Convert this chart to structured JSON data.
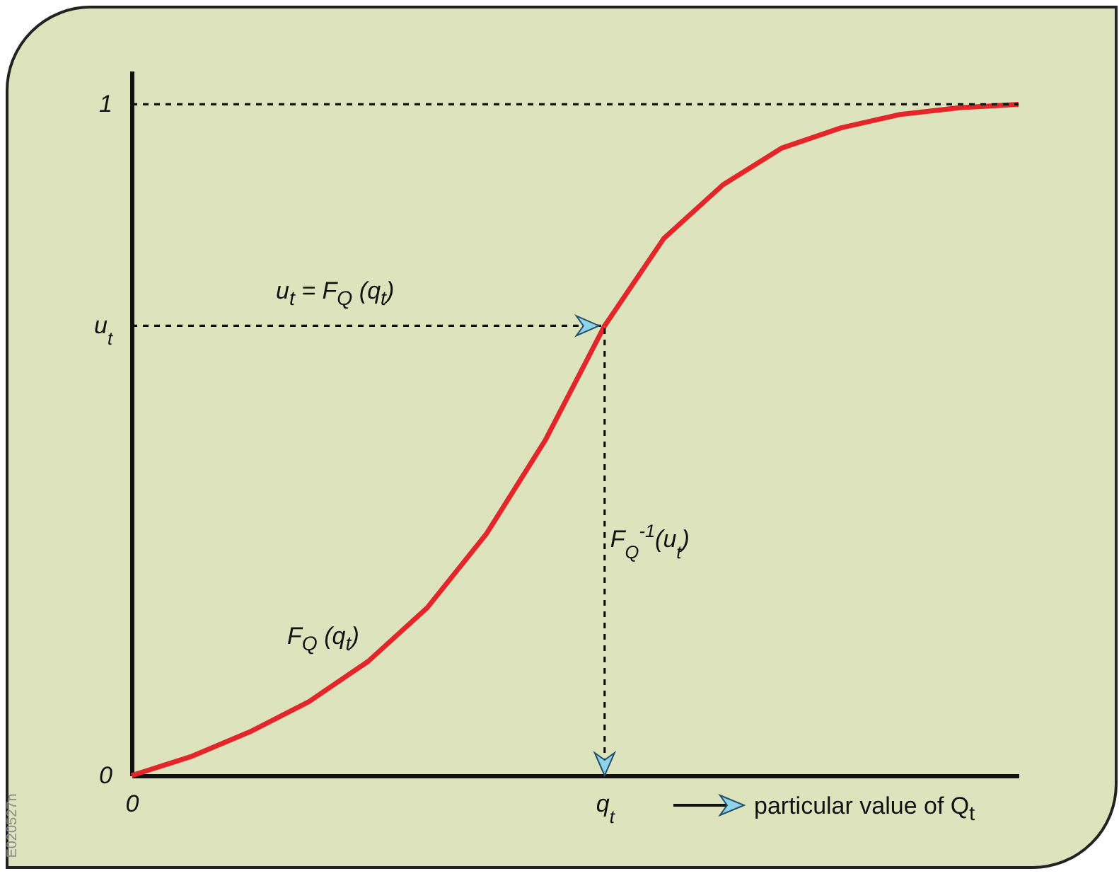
{
  "chart_data": {
    "type": "line",
    "categories": [
      "0",
      null,
      null,
      null,
      null,
      null,
      null,
      null,
      "q$_{t}$",
      null,
      null,
      null,
      null,
      null,
      null,
      null
    ],
    "series": [
      {
        "color": "#e3262a",
        "values": [
          0,
          0.028,
          0.065,
          0.11,
          0.17,
          0.25,
          0.36,
          0.5,
          0.67,
          0.8,
          0.88,
          0.935,
          0.965,
          0.985,
          0.995,
          1
        ]
      }
    ],
    "ylim": [
      0,
      1.05
    ],
    "yticks": [
      0,
      {
        "value": 0.67,
        "label": "u$_{t}$"
      },
      1
    ],
    "ref_lines": [
      {
        "axis": "y",
        "value": 1,
        "line_style": "dashed"
      },
      {
        "axis": "y",
        "value": 0.67,
        "line_style": "dashed"
      },
      {
        "axis": "x",
        "value": "q$_{t}$",
        "line_style": "dashed"
      }
    ],
    "annotations": [
      "u$_{t}$ = F$_{Q}$ (q$_{t}$)",
      {
        "text": "F$_{Q}$$^{-1}$(u$_{t}$)",
        "x": "q$_{t}$",
        "y": 0.34
      },
      "F$_{Q}$ (q$_{t}$)",
      "particular value of Q$_{t}$",
      "E020527n"
    ],
    "grid": false,
    "legend": false
  }
}
